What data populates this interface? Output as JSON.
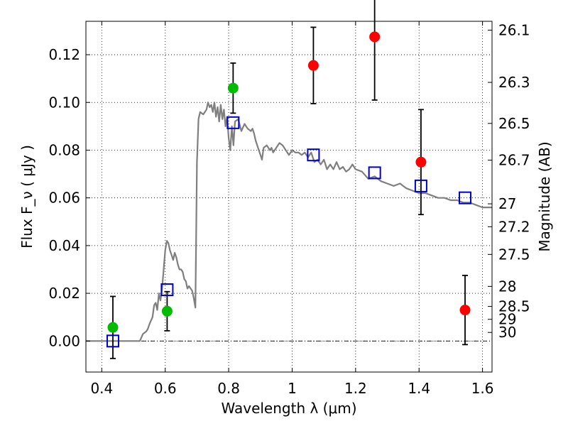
{
  "chart_data": {
    "type": "scatter",
    "xlabel": "Wavelength  λ (μm)",
    "ylabel": "Flux  F_ν  ( μJy )",
    "ylabel_right": "Magnitude (AB)",
    "xlim": [
      0.35,
      1.63
    ],
    "ylim": [
      -0.013,
      0.134
    ],
    "grid": true,
    "x_ticks": [
      0.4,
      0.6,
      0.8,
      1.0,
      1.2,
      1.4,
      1.6
    ],
    "x_tick_labels": [
      "0.4",
      "0.6",
      "0.8",
      "1",
      "1.2",
      "1.4",
      "1.6"
    ],
    "y_ticks": [
      0.0,
      0.02,
      0.04,
      0.06,
      0.08,
      0.1,
      0.12
    ],
    "y_tick_labels": [
      "0.00",
      "0.02",
      "0.04",
      "0.06",
      "0.08",
      "0.10",
      "0.12"
    ],
    "right_ticks": [
      {
        "label": "26.1",
        "flux": 0.1303
      },
      {
        "label": "26.3",
        "flux": 0.1084
      },
      {
        "label": "26.5",
        "flux": 0.0912
      },
      {
        "label": "26.7",
        "flux": 0.0758
      },
      {
        "label": "27",
        "flux": 0.0575
      },
      {
        "label": "27.2",
        "flux": 0.0479
      },
      {
        "label": "27.5",
        "flux": 0.0363
      },
      {
        "label": "28",
        "flux": 0.0229
      },
      {
        "label": "28.5",
        "flux": 0.0145
      },
      {
        "label": "29",
        "flux": 0.0091
      },
      {
        "label": "30",
        "flux": 0.0036
      }
    ],
    "series": [
      {
        "kind": "model-spectrum",
        "color": "#7f7f7f",
        "points": [
          [
            0.35,
            0.0
          ],
          [
            0.4,
            0.0
          ],
          [
            0.45,
            0.0
          ],
          [
            0.5,
            0.0
          ],
          [
            0.52,
            0.0
          ],
          [
            0.53,
            0.003
          ],
          [
            0.54,
            0.004
          ],
          [
            0.545,
            0.005
          ],
          [
            0.55,
            0.007
          ],
          [
            0.56,
            0.01
          ],
          [
            0.565,
            0.015
          ],
          [
            0.57,
            0.016
          ],
          [
            0.575,
            0.013
          ],
          [
            0.58,
            0.02
          ],
          [
            0.585,
            0.017
          ],
          [
            0.59,
            0.022
          ],
          [
            0.595,
            0.03
          ],
          [
            0.6,
            0.038
          ],
          [
            0.605,
            0.042
          ],
          [
            0.61,
            0.041
          ],
          [
            0.615,
            0.038
          ],
          [
            0.62,
            0.036
          ],
          [
            0.625,
            0.034
          ],
          [
            0.63,
            0.037
          ],
          [
            0.635,
            0.035
          ],
          [
            0.64,
            0.032
          ],
          [
            0.645,
            0.03
          ],
          [
            0.65,
            0.03
          ],
          [
            0.655,
            0.029
          ],
          [
            0.66,
            0.026
          ],
          [
            0.665,
            0.025
          ],
          [
            0.67,
            0.022
          ],
          [
            0.675,
            0.023
          ],
          [
            0.68,
            0.022
          ],
          [
            0.685,
            0.021
          ],
          [
            0.69,
            0.018
          ],
          [
            0.695,
            0.014
          ],
          [
            0.7,
            0.075
          ],
          [
            0.705,
            0.093
          ],
          [
            0.71,
            0.096
          ],
          [
            0.72,
            0.095
          ],
          [
            0.73,
            0.097
          ],
          [
            0.735,
            0.1
          ],
          [
            0.74,
            0.098
          ],
          [
            0.745,
            0.099
          ],
          [
            0.75,
            0.096
          ],
          [
            0.755,
            0.1
          ],
          [
            0.76,
            0.094
          ],
          [
            0.765,
            0.098
          ],
          [
            0.77,
            0.092
          ],
          [
            0.775,
            0.099
          ],
          [
            0.78,
            0.093
          ],
          [
            0.785,
            0.097
          ],
          [
            0.79,
            0.09
          ],
          [
            0.795,
            0.094
          ],
          [
            0.8,
            0.085
          ],
          [
            0.805,
            0.08
          ],
          [
            0.81,
            0.09
          ],
          [
            0.815,
            0.082
          ],
          [
            0.82,
            0.092
          ],
          [
            0.83,
            0.093
          ],
          [
            0.84,
            0.088
          ],
          [
            0.85,
            0.091
          ],
          [
            0.86,
            0.089
          ],
          [
            0.87,
            0.088
          ],
          [
            0.875,
            0.089
          ],
          [
            0.88,
            0.087
          ],
          [
            0.885,
            0.084
          ],
          [
            0.89,
            0.082
          ],
          [
            0.9,
            0.078
          ],
          [
            0.905,
            0.076
          ],
          [
            0.91,
            0.081
          ],
          [
            0.92,
            0.082
          ],
          [
            0.93,
            0.08
          ],
          [
            0.935,
            0.081
          ],
          [
            0.94,
            0.079
          ],
          [
            0.95,
            0.081
          ],
          [
            0.96,
            0.083
          ],
          [
            0.97,
            0.082
          ],
          [
            0.98,
            0.08
          ],
          [
            0.99,
            0.078
          ],
          [
            1.0,
            0.08
          ],
          [
            1.01,
            0.079
          ],
          [
            1.02,
            0.079
          ],
          [
            1.03,
            0.078
          ],
          [
            1.04,
            0.079
          ],
          [
            1.05,
            0.077
          ],
          [
            1.06,
            0.079
          ],
          [
            1.07,
            0.075
          ],
          [
            1.08,
            0.076
          ],
          [
            1.09,
            0.074
          ],
          [
            1.1,
            0.076
          ],
          [
            1.11,
            0.072
          ],
          [
            1.12,
            0.074
          ],
          [
            1.13,
            0.072
          ],
          [
            1.14,
            0.075
          ],
          [
            1.15,
            0.072
          ],
          [
            1.16,
            0.073
          ],
          [
            1.17,
            0.071
          ],
          [
            1.18,
            0.072
          ],
          [
            1.19,
            0.074
          ],
          [
            1.2,
            0.072
          ],
          [
            1.22,
            0.071
          ],
          [
            1.24,
            0.068
          ],
          [
            1.26,
            0.069
          ],
          [
            1.28,
            0.067
          ],
          [
            1.3,
            0.066
          ],
          [
            1.32,
            0.065
          ],
          [
            1.34,
            0.066
          ],
          [
            1.36,
            0.064
          ],
          [
            1.38,
            0.063
          ],
          [
            1.4,
            0.062
          ],
          [
            1.42,
            0.062
          ],
          [
            1.44,
            0.061
          ],
          [
            1.46,
            0.06
          ],
          [
            1.48,
            0.06
          ],
          [
            1.5,
            0.059
          ],
          [
            1.52,
            0.059
          ],
          [
            1.54,
            0.058
          ],
          [
            1.56,
            0.058
          ],
          [
            1.58,
            0.057
          ],
          [
            1.6,
            0.056
          ],
          [
            1.63,
            0.056
          ]
        ]
      },
      {
        "kind": "model-photometry",
        "marker": "open-square",
        "color": "#0000cc",
        "points": [
          {
            "x": 0.435,
            "y": 0.0
          },
          {
            "x": 0.606,
            "y": 0.0215
          },
          {
            "x": 0.814,
            "y": 0.0915
          },
          {
            "x": 1.067,
            "y": 0.078
          },
          {
            "x": 1.26,
            "y": 0.0705
          },
          {
            "x": 1.406,
            "y": 0.065
          },
          {
            "x": 1.545,
            "y": 0.06
          }
        ]
      },
      {
        "kind": "observed-green",
        "marker": "filled-circle",
        "color": "#00bb00",
        "points": [
          {
            "x": 0.435,
            "y": 0.0057,
            "err": 0.013
          },
          {
            "x": 0.606,
            "y": 0.0125,
            "err": 0.0082
          },
          {
            "x": 0.814,
            "y": 0.106,
            "err": 0.0105
          }
        ]
      },
      {
        "kind": "observed-red",
        "marker": "filled-circle",
        "color": "#ff0000",
        "points": [
          {
            "x": 1.067,
            "y": 0.1155,
            "err": 0.016
          },
          {
            "x": 1.26,
            "y": 0.1275,
            "err": 0.0265
          },
          {
            "x": 1.406,
            "y": 0.075,
            "err": 0.022
          },
          {
            "x": 1.545,
            "y": 0.013,
            "err": 0.0145
          }
        ]
      }
    ]
  }
}
